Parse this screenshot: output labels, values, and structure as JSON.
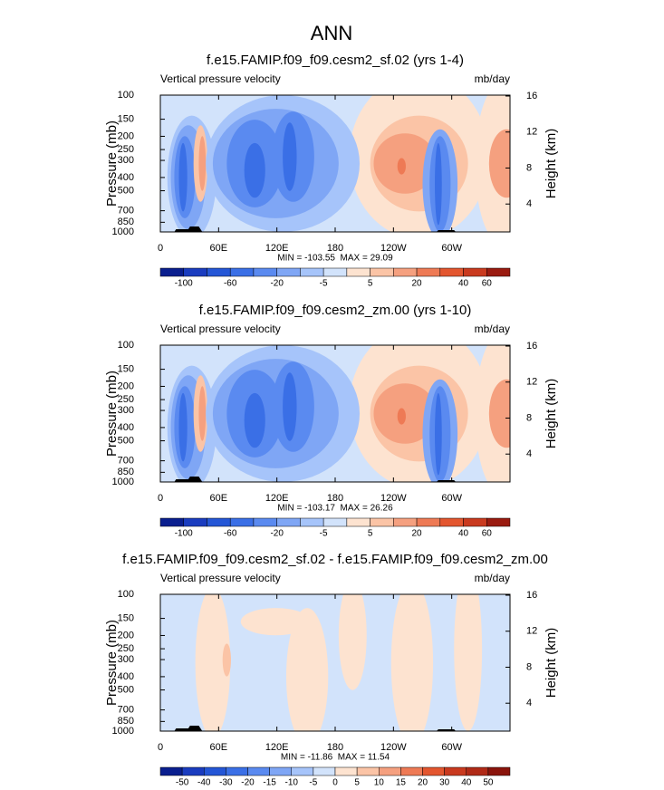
{
  "title": "ANN",
  "chart_data": [
    {
      "type": "contour",
      "title": "f.e15.FAMIP.f09_f09.cesm2_sf.02 (yrs 1-4)",
      "left_string": "Vertical pressure velocity",
      "right_string": "mb/day",
      "ylabel": "Pressure (mb)",
      "y2label": "Height (km)",
      "xlim": [
        0,
        360
      ],
      "xticks": [
        0,
        {
          "value": 60,
          "label": "60E"
        },
        {
          "value": 120,
          "label": "120E"
        },
        180,
        {
          "value": 240,
          "label": "120W"
        },
        {
          "value": 300,
          "label": "60W"
        }
      ],
      "ylim": [
        1000,
        100
      ],
      "log_y": true,
      "yticks": [
        100,
        150,
        200,
        250,
        300,
        400,
        500,
        700,
        850,
        1000
      ],
      "y2lim": [
        0.9,
        16.1
      ],
      "y2ticks": [
        4,
        8,
        12,
        16
      ],
      "stats": "MIN = -103.55  MAX = 29.09",
      "colorbar": {
        "levels": [
          -100,
          null,
          -60,
          null,
          -20,
          null,
          -5,
          null,
          5,
          null,
          20,
          null,
          40,
          60
        ],
        "colors": [
          "#0a1f8f",
          "#1a3cbf",
          "#2456d6",
          "#3a6fe6",
          "#5a8af0",
          "#7fa6f5",
          "#a6c4fa",
          "#d2e3fb",
          "#fde3d0",
          "#fbc4a6",
          "#f5a07f",
          "#ee7a55",
          "#e3562f",
          "#c93a1f",
          "#9a1b10"
        ]
      }
    },
    {
      "type": "contour",
      "title": "f.e15.FAMIP.f09_f09.cesm2_zm.00 (yrs 1-10)",
      "left_string": "Vertical pressure velocity",
      "right_string": "mb/day",
      "ylabel": "Pressure (mb)",
      "y2label": "Height (km)",
      "xlim": [
        0,
        360
      ],
      "xticks": [
        0,
        {
          "value": 60,
          "label": "60E"
        },
        {
          "value": 120,
          "label": "120E"
        },
        180,
        {
          "value": 240,
          "label": "120W"
        },
        {
          "value": 300,
          "label": "60W"
        }
      ],
      "ylim": [
        1000,
        100
      ],
      "log_y": true,
      "yticks": [
        100,
        150,
        200,
        250,
        300,
        400,
        500,
        700,
        850,
        1000
      ],
      "y2lim": [
        0.9,
        16.1
      ],
      "y2ticks": [
        4,
        8,
        12,
        16
      ],
      "stats": "MIN = -103.17  MAX = 26.26",
      "colorbar": {
        "levels": [
          -100,
          null,
          -60,
          null,
          -20,
          null,
          -5,
          null,
          5,
          null,
          20,
          null,
          40,
          60
        ],
        "colors": [
          "#0a1f8f",
          "#1a3cbf",
          "#2456d6",
          "#3a6fe6",
          "#5a8af0",
          "#7fa6f5",
          "#a6c4fa",
          "#d2e3fb",
          "#fde3d0",
          "#fbc4a6",
          "#f5a07f",
          "#ee7a55",
          "#e3562f",
          "#c93a1f",
          "#9a1b10"
        ]
      }
    },
    {
      "type": "contour",
      "title": "f.e15.FAMIP.f09_f09.cesm2_sf.02 - f.e15.FAMIP.f09_f09.cesm2_zm.00",
      "left_string": "Vertical pressure velocity",
      "right_string": "mb/day",
      "ylabel": "Pressure (mb)",
      "y2label": "Height (km)",
      "xlim": [
        0,
        360
      ],
      "xticks": [
        0,
        {
          "value": 60,
          "label": "60E"
        },
        {
          "value": 120,
          "label": "120E"
        },
        180,
        {
          "value": 240,
          "label": "120W"
        },
        {
          "value": 300,
          "label": "60W"
        }
      ],
      "ylim": [
        1000,
        100
      ],
      "log_y": true,
      "yticks": [
        100,
        150,
        200,
        250,
        300,
        400,
        500,
        700,
        850,
        1000
      ],
      "y2lim": [
        0.9,
        16.1
      ],
      "y2ticks": [
        4,
        8,
        12,
        16
      ],
      "stats": "MIN = -11.86  MAX = 11.54",
      "colorbar": {
        "levels": [
          -50,
          -40,
          -30,
          -20,
          -15,
          -10,
          -5,
          0,
          5,
          10,
          15,
          20,
          30,
          40,
          50
        ],
        "colors": [
          "#0a1f8f",
          "#1a3cbf",
          "#2456d6",
          "#3a6fe6",
          "#5a8af0",
          "#7fa6f5",
          "#a6c4fa",
          "#d2e3fb",
          "#fde3d0",
          "#fbc4a6",
          "#f5a07f",
          "#ee7a55",
          "#e3562f",
          "#c93a1f",
          "#b02a17",
          "#8a140c"
        ]
      }
    }
  ]
}
